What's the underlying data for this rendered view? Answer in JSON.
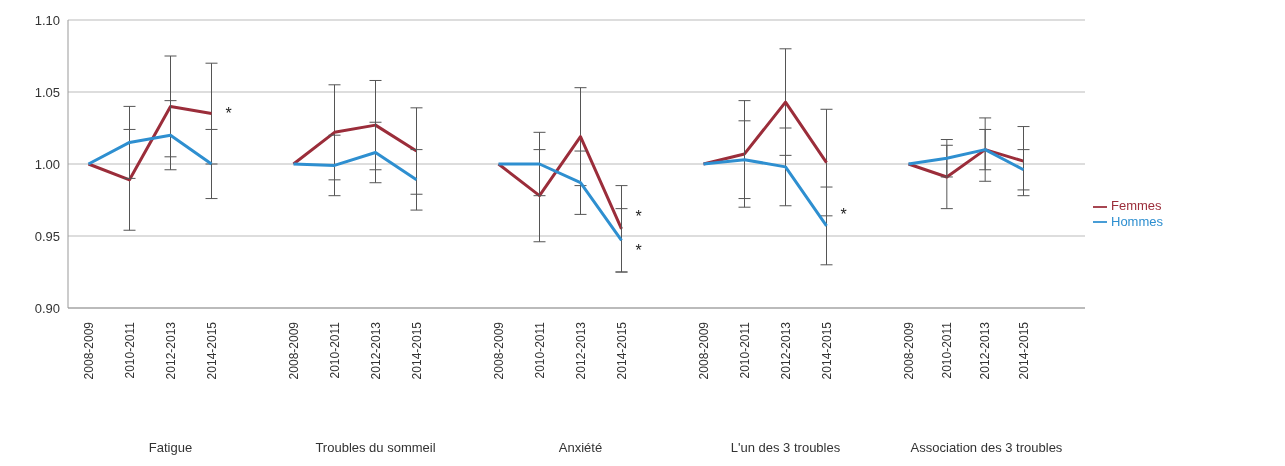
{
  "chart_data": [
    {
      "type": "line",
      "xlabel": "Fatigue",
      "categories": [
        "2008-2009",
        "2010-2011",
        "2012-2013",
        "2014-2015"
      ],
      "series": [
        {
          "color": "#9b2d3a",
          "values": [
            1.0,
            0.989,
            1.04,
            1.035
          ],
          "errors": [
            null,
            0.035,
            0.035,
            0.035
          ]
        },
        {
          "color": "#2e8fd0",
          "values": [
            1.0,
            1.015,
            1.02,
            1.0
          ],
          "errors": [
            null,
            0.025,
            0.024,
            0.024
          ]
        }
      ],
      "ylim": [
        0.9,
        1.1
      ],
      "yticks": [
        {
          "value": 0.9,
          "label": "0.90"
        },
        {
          "value": 0.95,
          "label": "0.95"
        },
        {
          "value": 1.0,
          "label": "1.00"
        },
        {
          "value": 1.05,
          "label": "1.05"
        },
        {
          "value": 1.1,
          "label": "1.10"
        }
      ],
      "grid": "y",
      "marker": "none",
      "annotations": [
        {
          "text": "*",
          "x": "2014-2015",
          "y": 1.035
        }
      ]
    },
    {
      "type": "line",
      "xlabel": "Troubles du sommeil",
      "categories": [
        "2008-2009",
        "2010-2011",
        "2012-2013",
        "2014-2015"
      ],
      "series": [
        {
          "color": "#9b2d3a",
          "values": [
            1.0,
            1.022,
            1.027,
            1.009
          ],
          "errors": [
            null,
            0.033,
            0.031,
            0.03
          ]
        },
        {
          "color": "#2e8fd0",
          "values": [
            1.0,
            0.999,
            1.008,
            0.989
          ],
          "errors": [
            null,
            0.021,
            0.021,
            0.021
          ]
        }
      ],
      "ylim": [
        0.9,
        1.1
      ],
      "yticks": [
        0.9,
        0.95,
        1.0,
        1.05,
        1.1
      ],
      "grid": "y",
      "marker": "none",
      "tick_labels": "x"
    },
    {
      "type": "line",
      "xlabel": "Anxiété",
      "categories": [
        "2008-2009",
        "2010-2011",
        "2012-2013",
        "2014-2015"
      ],
      "series": [
        {
          "color": "#9b2d3a",
          "values": [
            1.0,
            0.978,
            1.019,
            0.955
          ],
          "errors": [
            null,
            0.032,
            0.034,
            0.03
          ]
        },
        {
          "color": "#2e8fd0",
          "values": [
            1.0,
            1.0,
            0.987,
            0.947
          ],
          "errors": [
            null,
            0.022,
            0.022,
            0.022
          ]
        }
      ],
      "ylim": [
        0.9,
        1.1
      ],
      "yticks": [
        0.9,
        0.95,
        1.0,
        1.05,
        1.1
      ],
      "grid": "y",
      "marker": "none",
      "tick_labels": "x",
      "annotations": [
        {
          "text": "*",
          "x": "2014-2015",
          "y": 0.964
        },
        {
          "text": "*",
          "x": "2014-2015",
          "y": 0.94
        }
      ]
    },
    {
      "type": "line",
      "xlabel": "L'un des 3 troubles",
      "categories": [
        "2008-2009",
        "2010-2011",
        "2012-2013",
        "2014-2015"
      ],
      "series": [
        {
          "color": "#9b2d3a",
          "values": [
            1.0,
            1.007,
            1.043,
            1.001
          ],
          "errors": [
            null,
            0.037,
            0.037,
            0.037
          ]
        },
        {
          "color": "#2e8fd0",
          "values": [
            1.0,
            1.003,
            0.998,
            0.957
          ],
          "errors": [
            null,
            0.027,
            0.027,
            0.027
          ]
        }
      ],
      "ylim": [
        0.9,
        1.1
      ],
      "yticks": [
        0.9,
        0.95,
        1.0,
        1.05,
        1.1
      ],
      "grid": "y",
      "marker": "none",
      "tick_labels": "x",
      "annotations": [
        {
          "text": "*",
          "x": "2014-2015",
          "y": 0.965
        }
      ]
    },
    {
      "type": "line",
      "xlabel": "Association des 3 troubles",
      "categories": [
        "2008-2009",
        "2010-2011",
        "2012-2013",
        "2014-2015"
      ],
      "series": [
        {
          "name": "Femmes",
          "color": "#9b2d3a",
          "values": [
            1.0,
            0.991,
            1.01,
            1.002
          ],
          "errors": [
            null,
            0.022,
            0.022,
            0.024
          ]
        },
        {
          "name": "Hommes",
          "color": "#2e8fd0",
          "values": [
            1.0,
            1.004,
            1.01,
            0.996
          ],
          "errors": [
            null,
            0.013,
            0.014,
            0.014
          ]
        }
      ],
      "ylim": [
        0.9,
        1.1
      ],
      "yticks": [
        0.9,
        0.95,
        1.0,
        1.05,
        1.1
      ],
      "grid": "y",
      "marker": "none",
      "tick_labels": "x",
      "legend": "right"
    }
  ]
}
